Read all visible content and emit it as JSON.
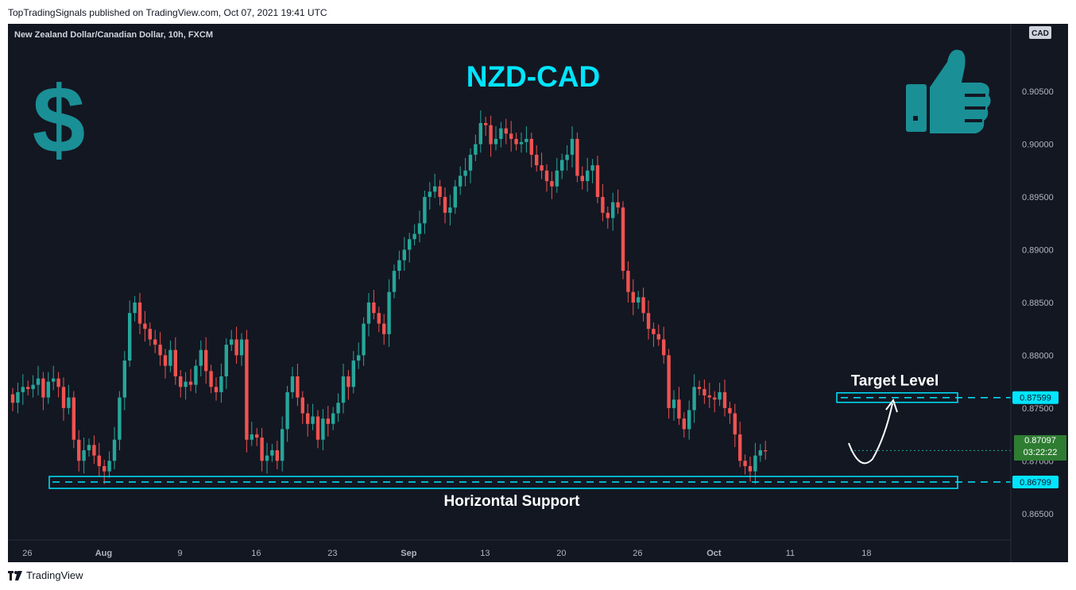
{
  "header": {
    "published": "TopTradingSignals published on TradingView.com, Oct 07, 2021 19:41 UTC"
  },
  "symbol": "New Zealand Dollar/Canadian Dollar, 10h, FXCM",
  "currency": "CAD",
  "footer": {
    "logo_text": "TradingView"
  },
  "annotations": {
    "title": "NZD-CAD",
    "target_label": "Target Level",
    "support_label": "Horizontal Support",
    "dollar_symbol": "$",
    "icon": "thumbs-up-icon"
  },
  "price_labels": {
    "target": "0.87599",
    "support": "0.86799",
    "current": "0.87097",
    "countdown": "03:22:22"
  },
  "colors": {
    "up": "#26a69a",
    "down": "#ef5350",
    "accent": "#00e5ff",
    "background": "#131722",
    "icons": "#1a8f96"
  },
  "chart_data": {
    "type": "candlestick",
    "ylim": [
      0.8625,
      0.9105
    ],
    "y_ticks": [
      "0.86500",
      "0.87000",
      "0.87500",
      "0.88000",
      "0.88500",
      "0.89000",
      "0.89500",
      "0.90000",
      "0.90500"
    ],
    "x_ticks": [
      "26",
      "Aug",
      "9",
      "16",
      "23",
      "Sep",
      "13",
      "20",
      "26",
      "Oct",
      "11",
      "18"
    ],
    "levels": {
      "target": 0.87599,
      "support": 0.86799,
      "current": 0.87097
    },
    "closes": [
      0.8755,
      0.8765,
      0.877,
      0.8768,
      0.8772,
      0.8778,
      0.876,
      0.8775,
      0.8778,
      0.877,
      0.875,
      0.876,
      0.872,
      0.87,
      0.871,
      0.8715,
      0.8705,
      0.8695,
      0.869,
      0.87,
      0.872,
      0.876,
      0.8795,
      0.884,
      0.885,
      0.883,
      0.8825,
      0.8815,
      0.881,
      0.88,
      0.879,
      0.8805,
      0.878,
      0.877,
      0.8775,
      0.8772,
      0.879,
      0.8805,
      0.8785,
      0.877,
      0.8765,
      0.878,
      0.881,
      0.8815,
      0.88,
      0.8815,
      0.872,
      0.8725,
      0.8722,
      0.87,
      0.8705,
      0.871,
      0.87,
      0.873,
      0.8765,
      0.878,
      0.876,
      0.8745,
      0.8735,
      0.8742,
      0.872,
      0.874,
      0.8735,
      0.8745,
      0.8755,
      0.878,
      0.877,
      0.8795,
      0.88,
      0.883,
      0.885,
      0.884,
      0.883,
      0.882,
      0.886,
      0.888,
      0.889,
      0.89,
      0.891,
      0.8915,
      0.8925,
      0.895,
      0.8955,
      0.896,
      0.895,
      0.8935,
      0.894,
      0.896,
      0.897,
      0.8975,
      0.899,
      0.9,
      0.902,
      0.9018,
      0.9,
      0.9005,
      0.9015,
      0.901,
      0.9005,
      0.9,
      0.9002,
      0.9005,
      0.899,
      0.898,
      0.8975,
      0.8965,
      0.896,
      0.8975,
      0.8985,
      0.899,
      0.9005,
      0.897,
      0.8965,
      0.8975,
      0.898,
      0.895,
      0.8935,
      0.893,
      0.8945,
      0.894,
      0.888,
      0.886,
      0.885,
      0.8855,
      0.884,
      0.8825,
      0.882,
      0.8815,
      0.88,
      0.875,
      0.8758,
      0.874,
      0.873,
      0.8748,
      0.877,
      0.8768,
      0.8762,
      0.876,
      0.8758,
      0.8765,
      0.875,
      0.8745,
      0.8725,
      0.87,
      0.8695,
      0.869,
      0.8705,
      0.871,
      0.8709
    ]
  }
}
